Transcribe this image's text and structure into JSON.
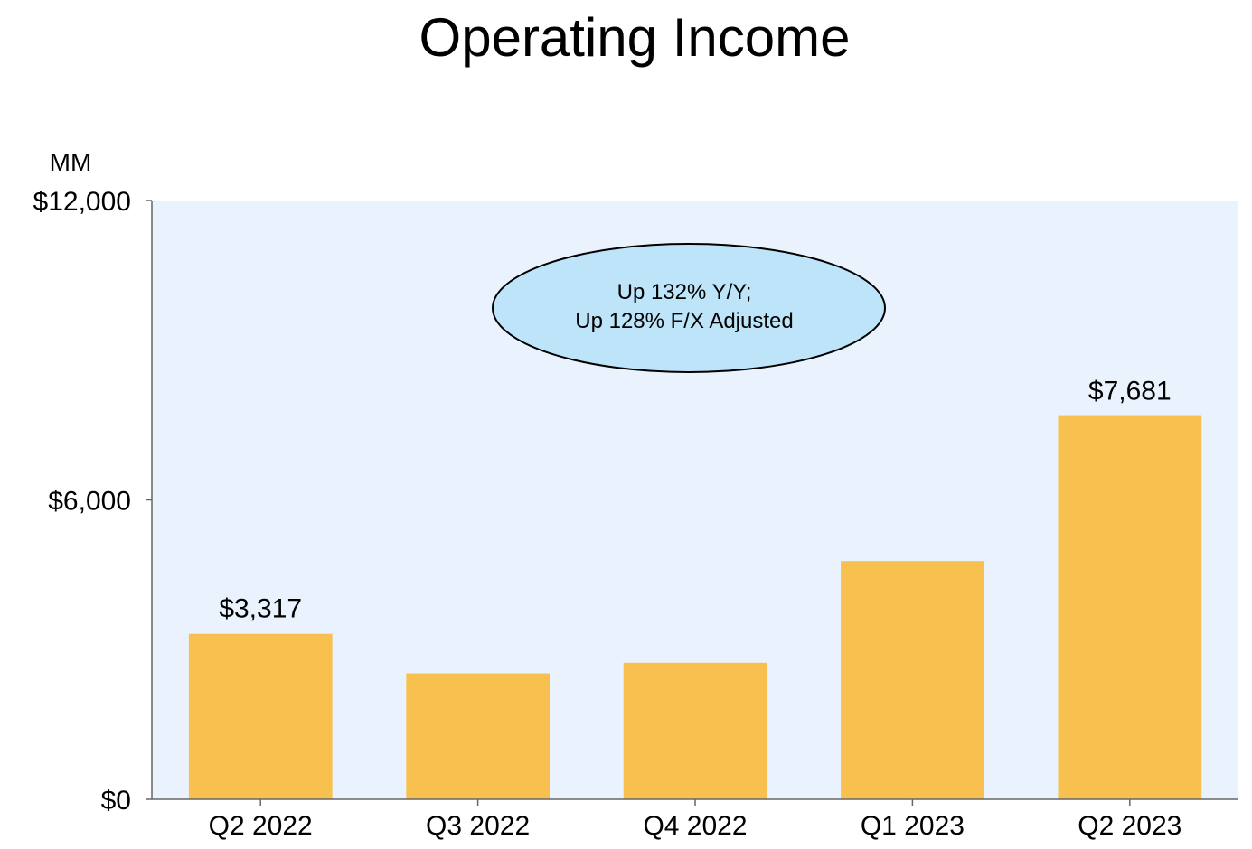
{
  "colors": {
    "bar": "#F8C04F",
    "plot_background": "#EAF3FD",
    "annotation_fill": "#BDE4F8",
    "axis": "#666666"
  },
  "chart_data": {
    "type": "bar",
    "title": "Operating Income",
    "unit_label": "MM",
    "categories": [
      "Q2 2022",
      "Q3 2022",
      "Q4 2022",
      "Q1 2023",
      "Q2 2023"
    ],
    "values": [
      3317,
      2525,
      2737,
      4774,
      7681
    ],
    "data_labels": [
      "$3,317",
      "",
      "",
      "",
      "$7,681"
    ],
    "ylim": [
      0,
      12000
    ],
    "yticks": [
      {
        "value": 0,
        "label": "$0"
      },
      {
        "value": 6000,
        "label": "$6,000"
      },
      {
        "value": 12000,
        "label": "$12,000"
      }
    ],
    "annotation": {
      "line1": "Up 132% Y/Y;",
      "line2": "Up 128% F/X Adjusted"
    },
    "grid": false,
    "legend": "none"
  }
}
